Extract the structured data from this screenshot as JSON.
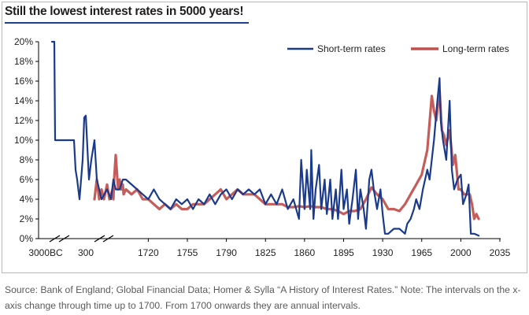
{
  "chart_data": {
    "type": "line",
    "title": "Still the lowest interest rates in 5000 years!",
    "xlabel": "",
    "ylabel": "",
    "ylim": [
      0,
      20
    ],
    "y_ticks": [
      "0%",
      "2%",
      "4%",
      "6%",
      "8%",
      "10%",
      "12%",
      "14%",
      "16%",
      "18%",
      "20%"
    ],
    "x_tick_labels": [
      "3000BC",
      "300",
      "1720",
      "1755",
      "1790",
      "1825",
      "1860",
      "1895",
      "1930",
      "1965",
      "2000",
      "2035"
    ],
    "x_axis_note": "The intervals on the x-axis change through time up to 1700. From 1700 onwards they are annual intervals.",
    "legend_position": "top-right",
    "grid": false,
    "series": [
      {
        "name": "Short-term rates",
        "color": "#1a3a8c",
        "points": [
          [
            "3000BC",
            20
          ],
          [
            "2500BC",
            20
          ],
          [
            "2000BC",
            20
          ],
          [
            "1800BC",
            10
          ],
          [
            "1500BC",
            10
          ],
          [
            "1000BC",
            10
          ],
          [
            "800BC",
            10
          ],
          [
            "700BC",
            7
          ],
          [
            "600BC",
            6
          ],
          [
            "500BC",
            4
          ],
          [
            "400BC",
            6
          ],
          [
            "300BC",
            8
          ],
          [
            "250BC",
            12.3
          ],
          [
            "200BC",
            12.5
          ],
          [
            "100",
            6
          ],
          [
            "200",
            8
          ],
          [
            "300",
            10
          ],
          [
            "400",
            6
          ],
          [
            "600",
            4
          ],
          [
            "800",
            5
          ],
          [
            "1000",
            4
          ],
          [
            "1200",
            6
          ],
          [
            "1400",
            5
          ],
          [
            "1500",
            5
          ],
          [
            "1600",
            6
          ],
          [
            1700,
            6
          ],
          [
            1710,
            5
          ],
          [
            1715,
            4.5
          ],
          [
            1720,
            4
          ],
          [
            1725,
            5
          ],
          [
            1730,
            4
          ],
          [
            1735,
            3.5
          ],
          [
            1740,
            3
          ],
          [
            1745,
            4
          ],
          [
            1750,
            3.5
          ],
          [
            1755,
            4
          ],
          [
            1760,
            3
          ],
          [
            1765,
            4
          ],
          [
            1770,
            3.5
          ],
          [
            1775,
            4.5
          ],
          [
            1780,
            3.5
          ],
          [
            1785,
            4.5
          ],
          [
            1790,
            5
          ],
          [
            1795,
            4
          ],
          [
            1800,
            5
          ],
          [
            1805,
            4.5
          ],
          [
            1810,
            5
          ],
          [
            1815,
            4.5
          ],
          [
            1820,
            5
          ],
          [
            1825,
            3.5
          ],
          [
            1830,
            4.5
          ],
          [
            1835,
            3.5
          ],
          [
            1840,
            5
          ],
          [
            1845,
            3
          ],
          [
            1850,
            4
          ],
          [
            1855,
            2
          ],
          [
            1857,
            8
          ],
          [
            1860,
            3
          ],
          [
            1862,
            7
          ],
          [
            1865,
            3
          ],
          [
            1866,
            9
          ],
          [
            1868,
            2
          ],
          [
            1870,
            5
          ],
          [
            1873,
            7.5
          ],
          [
            1875,
            3
          ],
          [
            1878,
            6
          ],
          [
            1880,
            2.5
          ],
          [
            1883,
            6
          ],
          [
            1885,
            2
          ],
          [
            1888,
            5
          ],
          [
            1890,
            2
          ],
          [
            1893,
            7
          ],
          [
            1895,
            3
          ],
          [
            1898,
            5
          ],
          [
            1900,
            1.5
          ],
          [
            1903,
            4
          ],
          [
            1906,
            7
          ],
          [
            1908,
            2
          ],
          [
            1910,
            5
          ],
          [
            1913,
            3
          ],
          [
            1915,
            1
          ],
          [
            1918,
            6
          ],
          [
            1920,
            7
          ],
          [
            1922,
            5
          ],
          [
            1925,
            3
          ],
          [
            1928,
            5
          ],
          [
            1930,
            2.5
          ],
          [
            1932,
            0.5
          ],
          [
            1935,
            0.5
          ],
          [
            1940,
            1
          ],
          [
            1945,
            1
          ],
          [
            1950,
            0.5
          ],
          [
            1952,
            1.5
          ],
          [
            1955,
            2
          ],
          [
            1958,
            3
          ],
          [
            1960,
            4
          ],
          [
            1963,
            3
          ],
          [
            1966,
            5
          ],
          [
            1970,
            7
          ],
          [
            1972,
            6
          ],
          [
            1974,
            8
          ],
          [
            1976,
            10
          ],
          [
            1979,
            14
          ],
          [
            1981,
            16.3
          ],
          [
            1982,
            12
          ],
          [
            1984,
            10
          ],
          [
            1987,
            8
          ],
          [
            1990,
            14
          ],
          [
            1992,
            7
          ],
          [
            1994,
            5
          ],
          [
            1997,
            6
          ],
          [
            2000,
            6.5
          ],
          [
            2002,
            3.5
          ],
          [
            2005,
            4.5
          ],
          [
            2007,
            5.5
          ],
          [
            2009,
            0.5
          ],
          [
            2012,
            0.5
          ],
          [
            2016,
            0.3
          ]
        ]
      },
      {
        "name": "Long-term rates",
        "color": "#c0504d",
        "points": [
          [
            "300",
            4
          ],
          [
            "400",
            6
          ],
          [
            "500",
            4
          ],
          [
            "600",
            5
          ],
          [
            "700",
            4
          ],
          [
            "800",
            5.5
          ],
          [
            "900",
            4
          ],
          [
            "1000",
            4.5
          ],
          [
            "1100",
            5
          ],
          [
            "1200",
            4
          ],
          [
            "1300",
            6
          ],
          [
            "1400",
            8.5
          ],
          [
            "1450",
            5
          ],
          [
            "1500",
            6
          ],
          [
            "1550",
            5
          ],
          [
            "1600",
            5.5
          ],
          [
            "1650",
            4.5
          ],
          [
            1700,
            5
          ],
          [
            1705,
            4.5
          ],
          [
            1710,
            5
          ],
          [
            1715,
            4
          ],
          [
            1720,
            4
          ],
          [
            1725,
            3.5
          ],
          [
            1730,
            3
          ],
          [
            1735,
            3.5
          ],
          [
            1740,
            3
          ],
          [
            1745,
            3.5
          ],
          [
            1750,
            3
          ],
          [
            1755,
            3
          ],
          [
            1760,
            3.5
          ],
          [
            1765,
            3.5
          ],
          [
            1770,
            3.5
          ],
          [
            1775,
            4
          ],
          [
            1780,
            4.5
          ],
          [
            1785,
            5
          ],
          [
            1790,
            4
          ],
          [
            1795,
            4.5
          ],
          [
            1800,
            5
          ],
          [
            1805,
            4.5
          ],
          [
            1810,
            4.5
          ],
          [
            1815,
            4.5
          ],
          [
            1820,
            4
          ],
          [
            1825,
            3.5
          ],
          [
            1830,
            3.5
          ],
          [
            1835,
            3.5
          ],
          [
            1840,
            3.5
          ],
          [
            1845,
            3.2
          ],
          [
            1850,
            3.2
          ],
          [
            1855,
            3.3
          ],
          [
            1860,
            3.2
          ],
          [
            1865,
            3.3
          ],
          [
            1870,
            3.2
          ],
          [
            1875,
            3.2
          ],
          [
            1880,
            3
          ],
          [
            1885,
            3
          ],
          [
            1890,
            2.8
          ],
          [
            1895,
            2.5
          ],
          [
            1900,
            2.8
          ],
          [
            1905,
            2.8
          ],
          [
            1910,
            3
          ],
          [
            1915,
            4
          ],
          [
            1920,
            5.2
          ],
          [
            1925,
            4.5
          ],
          [
            1930,
            4
          ],
          [
            1935,
            3
          ],
          [
            1940,
            3
          ],
          [
            1945,
            2.8
          ],
          [
            1950,
            3.5
          ],
          [
            1955,
            4.5
          ],
          [
            1960,
            5.5
          ],
          [
            1965,
            6.5
          ],
          [
            1970,
            9
          ],
          [
            1974,
            14.5
          ],
          [
            1976,
            13
          ],
          [
            1978,
            12
          ],
          [
            1981,
            15
          ],
          [
            1983,
            11
          ],
          [
            1985,
            10.5
          ],
          [
            1987,
            9.5
          ],
          [
            1990,
            11
          ],
          [
            1993,
            7.5
          ],
          [
            1995,
            8.5
          ],
          [
            1998,
            5
          ],
          [
            2000,
            5
          ],
          [
            2003,
            4.5
          ],
          [
            2005,
            4.5
          ],
          [
            2008,
            4.5
          ],
          [
            2010,
            3.5
          ],
          [
            2012,
            2
          ],
          [
            2014,
            2.5
          ],
          [
            2016,
            2
          ]
        ]
      }
    ]
  },
  "source_note": "Source: Bank of England; Global Financial Data; Homer & Sylla “A History of Interest Rates.” Note: The intervals on the x-axis change through time up to 1700. From 1700 onwards they are annual intervals."
}
